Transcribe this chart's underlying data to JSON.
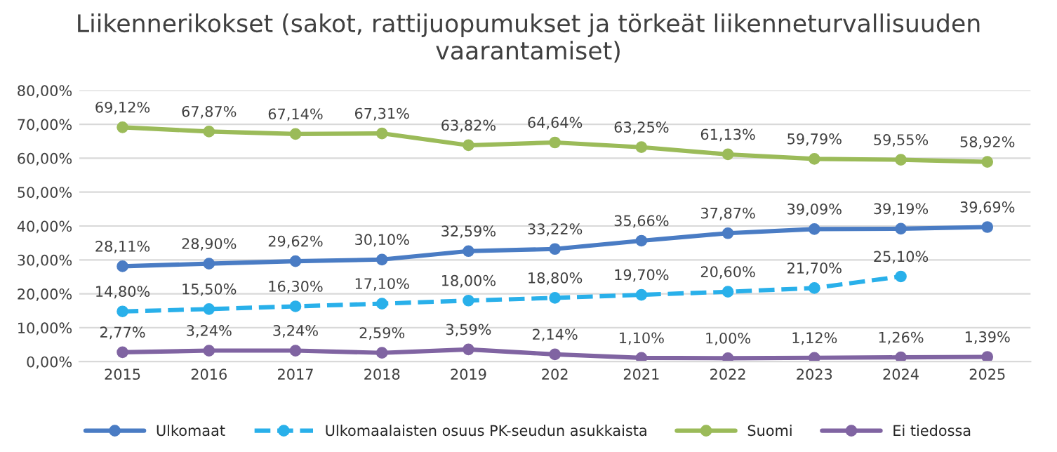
{
  "chart_data": {
    "type": "line",
    "title": "Liikennerikokset (sakot, rattijuopumukset ja törkeät liikenneturvallisuuden vaarantamiset)",
    "categories": [
      "2015",
      "2016",
      "2017",
      "2018",
      "2019",
      "202",
      "2021",
      "2022",
      "2023",
      "2024",
      "2025"
    ],
    "series": [
      {
        "name": "Ulkomaat",
        "color": "#4a7cc4",
        "line_style": "solid",
        "values": [
          28.11,
          28.9,
          29.62,
          30.1,
          32.59,
          33.22,
          35.66,
          37.87,
          39.09,
          39.19,
          39.69
        ],
        "value_labels": [
          "28,11%",
          "28,90%",
          "29,62%",
          "30,10%",
          "32,59%",
          "33,22%",
          "35,66%",
          "37,87%",
          "39,09%",
          "39,19%",
          "39,69%"
        ]
      },
      {
        "name": "Ulkomaalaisten osuus PK-seudun asukkaista",
        "color": "#29b0ea",
        "line_style": "dashed",
        "values": [
          14.8,
          15.5,
          16.3,
          17.1,
          18.0,
          18.8,
          19.7,
          20.6,
          21.7,
          25.1,
          null
        ],
        "value_labels": [
          "14,80%",
          "15,50%",
          "16,30%",
          "17,10%",
          "18,00%",
          "18,80%",
          "19,70%",
          "20,60%",
          "21,70%",
          "25,10%",
          null
        ]
      },
      {
        "name": "Suomi",
        "color": "#9bbb59",
        "line_style": "solid",
        "values": [
          69.12,
          67.87,
          67.14,
          67.31,
          63.82,
          64.64,
          63.25,
          61.13,
          59.79,
          59.55,
          58.92
        ],
        "value_labels": [
          "69,12%",
          "67,87%",
          "67,14%",
          "67,31%",
          "63,82%",
          "64,64%",
          "63,25%",
          "61,13%",
          "59,79%",
          "59,55%",
          "58,92%"
        ]
      },
      {
        "name": "Ei tiedossa",
        "color": "#8064a2",
        "line_style": "solid",
        "values": [
          2.77,
          3.24,
          3.24,
          2.59,
          3.59,
          2.14,
          1.1,
          1.0,
          1.12,
          1.26,
          1.39
        ],
        "value_labels": [
          "2,77%",
          "3,24%",
          "3,24%",
          "2,59%",
          "3,59%",
          "2,14%",
          "1,10%",
          "1,00%",
          "1,12%",
          "1,26%",
          "1,39%"
        ]
      }
    ],
    "ylim": [
      0,
      80
    ],
    "yticks": [
      {
        "value": 0,
        "label": "0,00%"
      },
      {
        "value": 10,
        "label": "10,00%"
      },
      {
        "value": 20,
        "label": "20,00%"
      },
      {
        "value": 30,
        "label": "30,00%"
      },
      {
        "value": 40,
        "label": "40,00%"
      },
      {
        "value": 50,
        "label": "50,00%"
      },
      {
        "value": 60,
        "label": "60,00%"
      },
      {
        "value": 70,
        "label": "70,00%"
      },
      {
        "value": 80,
        "label": "80,00%"
      }
    ],
    "grid": "y",
    "legend": "bottom",
    "marker": "circle"
  }
}
